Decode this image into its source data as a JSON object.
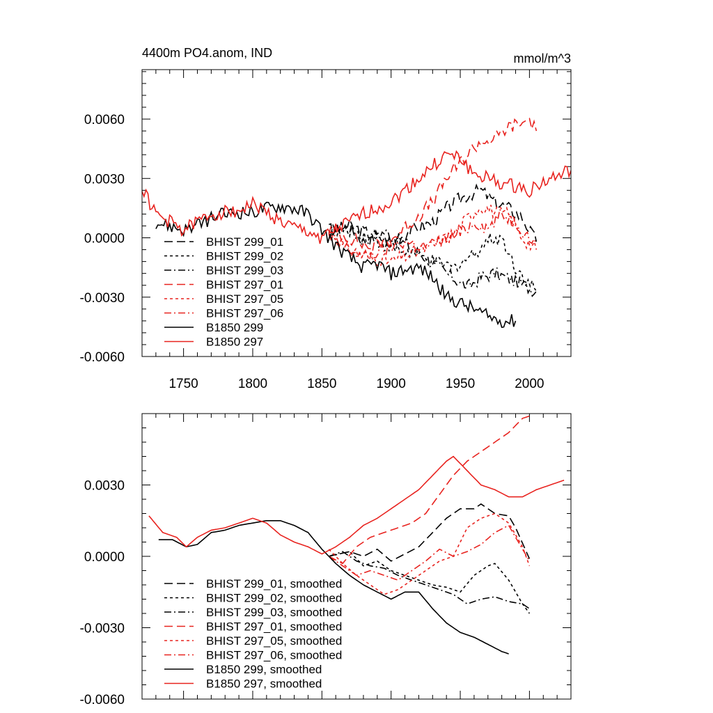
{
  "chart_data": [
    {
      "type": "line",
      "title": "4400m PO4.anom, IND",
      "units": "mmol/m^3",
      "xlim": [
        1720,
        2030
      ],
      "ylim": [
        -0.006,
        0.0085
      ],
      "xticks": [
        1750,
        1800,
        1850,
        1900,
        1950,
        2000
      ],
      "xtick_labels": [
        "1750",
        "1800",
        "1850",
        "1900",
        "1950",
        "2000"
      ],
      "yticks": [
        -0.006,
        -0.003,
        0.0,
        0.003,
        0.006
      ],
      "ytick_labels": [
        "-0.0060",
        "-0.0030",
        "0.0000",
        "0.0030",
        "0.0060"
      ],
      "legend_position": "bottom-left",
      "series": [
        {
          "name": "BHIST 299_01",
          "color": "#000000",
          "dash": "long",
          "smooth": false,
          "x": [
            1855,
            1870,
            1885,
            1900,
            1915,
            1930,
            1940,
            1950,
            1960,
            1965,
            1975,
            1985,
            1995,
            2005
          ],
          "y": [
            0.0003,
            0.0006,
            0.0002,
            -0.0002,
            0.0004,
            0.0008,
            0.0015,
            0.002,
            0.0023,
            0.0024,
            0.0018,
            0.0015,
            0.001,
            -0.0002
          ]
        },
        {
          "name": "BHIST 299_02",
          "color": "#000000",
          "dash": "short",
          "smooth": false,
          "x": [
            1855,
            1870,
            1885,
            1900,
            1915,
            1930,
            1945,
            1960,
            1970,
            1980,
            1990,
            2005
          ],
          "y": [
            0.0002,
            0.0004,
            0.0,
            -0.0005,
            -0.0008,
            -0.0012,
            -0.0015,
            -0.0008,
            -0.0001,
            0.0,
            -0.0015,
            -0.0027
          ]
        },
        {
          "name": "BHIST 299_03",
          "color": "#000000",
          "dash": "dashdot",
          "smooth": false,
          "x": [
            1855,
            1870,
            1880,
            1895,
            1910,
            1925,
            1940,
            1955,
            1965,
            1975,
            1990,
            2005
          ],
          "y": [
            0.0004,
            0.0005,
            -0.0002,
            0.0003,
            -0.0003,
            -0.001,
            -0.0018,
            -0.0025,
            -0.002,
            -0.0018,
            -0.0022,
            -0.0027
          ]
        },
        {
          "name": "BHIST 297_01",
          "color": "#e8231f",
          "dash": "long",
          "smooth": false,
          "x": [
            1855,
            1870,
            1885,
            1900,
            1915,
            1930,
            1940,
            1950,
            1960,
            1965,
            1975,
            1985,
            1995,
            2000,
            2005
          ],
          "y": [
            0.0004,
            0.0,
            -0.0005,
            -0.0001,
            0.0008,
            0.0018,
            0.003,
            0.0038,
            0.0046,
            0.0048,
            0.005,
            0.0056,
            0.0058,
            0.006,
            0.0054
          ]
        },
        {
          "name": "BHIST 297_05",
          "color": "#e8231f",
          "dash": "short",
          "smooth": false,
          "x": [
            1855,
            1870,
            1885,
            1900,
            1915,
            1930,
            1945,
            1955,
            1965,
            1975,
            1985,
            1995,
            2005
          ],
          "y": [
            0.0003,
            -0.0006,
            -0.001,
            -0.0012,
            -0.0008,
            -0.0004,
            0.0002,
            0.001,
            0.0016,
            0.0013,
            0.0012,
            0.0,
            -0.0006
          ]
        },
        {
          "name": "BHIST 297_06",
          "color": "#e8231f",
          "dash": "dashdot",
          "smooth": false,
          "x": [
            1855,
            1865,
            1880,
            1895,
            1910,
            1925,
            1940,
            1950,
            1960,
            1970,
            1980,
            1990,
            2000,
            2005
          ],
          "y": [
            0.0,
            -0.0004,
            -0.001,
            -0.0006,
            -0.0002,
            -0.0005,
            0.0,
            0.0002,
            0.0008,
            0.0005,
            0.0012,
            0.0008,
            0.0,
            -0.0003
          ]
        },
        {
          "name": "B1850 299",
          "color": "#000000",
          "dash": "solid",
          "smooth": false,
          "x": [
            1730,
            1740,
            1750,
            1760,
            1770,
            1780,
            1790,
            1800,
            1810,
            1820,
            1830,
            1840,
            1850,
            1860,
            1870,
            1880,
            1890,
            1900,
            1910,
            1920,
            1930,
            1940,
            1950,
            1960,
            1970,
            1980,
            1990
          ],
          "y": [
            0.0008,
            0.0006,
            0.0004,
            0.0006,
            0.001,
            0.0012,
            0.0013,
            0.0013,
            0.0015,
            0.0016,
            0.0015,
            0.0012,
            0.0004,
            -0.0004,
            -0.001,
            -0.0015,
            -0.0013,
            -0.0018,
            -0.0016,
            -0.0015,
            -0.002,
            -0.003,
            -0.0033,
            -0.0036,
            -0.004,
            -0.0042,
            -0.0042
          ]
        },
        {
          "name": "B1850 297",
          "color": "#e8231f",
          "dash": "solid",
          "smooth": false,
          "x": [
            1720,
            1730,
            1740,
            1750,
            1760,
            1770,
            1780,
            1790,
            1800,
            1810,
            1820,
            1830,
            1840,
            1850,
            1860,
            1870,
            1880,
            1890,
            1900,
            1910,
            1920,
            1930,
            1940,
            1950,
            1960,
            1970,
            1980,
            1990,
            2000,
            2010,
            2020,
            2030
          ],
          "y": [
            0.0025,
            0.0012,
            0.0008,
            0.0004,
            0.0008,
            0.0012,
            0.0013,
            0.0014,
            0.0017,
            0.0013,
            0.0008,
            0.0005,
            0.0003,
            0.0,
            0.0004,
            0.0008,
            0.0012,
            0.0015,
            0.0018,
            0.0024,
            0.003,
            0.0036,
            0.0042,
            0.004,
            0.0032,
            0.003,
            0.0027,
            0.0026,
            0.0024,
            0.0028,
            0.0031,
            0.0034
          ]
        }
      ]
    },
    {
      "type": "line",
      "xlim": [
        1720,
        2030
      ],
      "ylim": [
        -0.006,
        0.006
      ],
      "xticks": [
        1750,
        1800,
        1850,
        1900,
        1950,
        2000
      ],
      "yticks": [
        -0.006,
        -0.003,
        0.0,
        0.003
      ],
      "ytick_labels": [
        "-0.0060",
        "-0.0030",
        "0.0000",
        "0.0030"
      ],
      "legend_position": "bottom-left",
      "series": [
        {
          "name": "BHIST 299_01, smoothed",
          "color": "#000000",
          "dash": "long",
          "smooth": true,
          "x": [
            1855,
            1870,
            1880,
            1890,
            1900,
            1910,
            1920,
            1930,
            1940,
            1950,
            1960,
            1965,
            1975,
            1985,
            1990,
            2000
          ],
          "y": [
            0.0,
            0.0002,
            0.0,
            0.0003,
            -0.0002,
            0.0001,
            0.0004,
            0.001,
            0.0016,
            0.002,
            0.002,
            0.0022,
            0.0018,
            0.0017,
            0.0012,
            -0.0001
          ]
        },
        {
          "name": "BHIST 299_02, smoothed",
          "color": "#000000",
          "dash": "short",
          "smooth": true,
          "x": [
            1855,
            1870,
            1880,
            1890,
            1900,
            1910,
            1920,
            1930,
            1940,
            1950,
            1960,
            1970,
            1975,
            1985,
            1995,
            2000
          ],
          "y": [
            0.0,
            0.0002,
            -0.0004,
            -0.0002,
            -0.0006,
            -0.0008,
            -0.001,
            -0.0012,
            -0.0013,
            -0.0015,
            -0.0008,
            -0.0004,
            -0.0003,
            -0.001,
            -0.002,
            -0.0024
          ]
        },
        {
          "name": "BHIST 299_03, smoothed",
          "color": "#000000",
          "dash": "dashdot",
          "smooth": true,
          "x": [
            1855,
            1865,
            1875,
            1885,
            1895,
            1905,
            1915,
            1925,
            1935,
            1945,
            1955,
            1965,
            1975,
            1985,
            1995,
            2000
          ],
          "y": [
            0.0,
            0.0002,
            -0.0002,
            -0.0004,
            -0.0005,
            -0.0008,
            -0.001,
            -0.0012,
            -0.0014,
            -0.0016,
            -0.002,
            -0.0018,
            -0.0017,
            -0.0019,
            -0.002,
            -0.0022
          ]
        },
        {
          "name": "BHIST 297_01, smoothed",
          "color": "#e8231f",
          "dash": "long",
          "smooth": true,
          "x": [
            1855,
            1865,
            1875,
            1885,
            1895,
            1905,
            1915,
            1925,
            1935,
            1945,
            1955,
            1965,
            1975,
            1985,
            1995,
            2000
          ],
          "y": [
            0.0,
            -0.0003,
            0.0004,
            0.0008,
            0.001,
            0.0012,
            0.0014,
            0.0018,
            0.0026,
            0.0034,
            0.004,
            0.0044,
            0.0048,
            0.0052,
            0.0058,
            0.0059
          ]
        },
        {
          "name": "BHIST 297_05, smoothed",
          "color": "#e8231f",
          "dash": "short",
          "smooth": true,
          "x": [
            1855,
            1865,
            1875,
            1885,
            1895,
            1905,
            1915,
            1925,
            1935,
            1945,
            1955,
            1965,
            1975,
            1985,
            1995,
            2000
          ],
          "y": [
            0.0003,
            -0.0003,
            -0.0008,
            -0.0012,
            -0.0016,
            -0.0014,
            -0.001,
            -0.0006,
            -0.0002,
            0.0,
            0.0012,
            0.0016,
            0.0018,
            0.0014,
            0.0004,
            -0.0004
          ]
        },
        {
          "name": "BHIST 297_06, smoothed",
          "color": "#e8231f",
          "dash": "dashdot",
          "smooth": true,
          "x": [
            1855,
            1865,
            1875,
            1885,
            1895,
            1905,
            1915,
            1925,
            1935,
            1945,
            1955,
            1965,
            1975,
            1985,
            1995,
            2000
          ],
          "y": [
            0.0,
            -0.0004,
            -0.0008,
            -0.0006,
            -0.0008,
            -0.001,
            -0.0006,
            -0.0002,
            0.0003,
            0.0,
            0.0002,
            0.0005,
            0.001,
            0.0013,
            0.0003,
            -0.0002
          ]
        },
        {
          "name": "B1850 299, smoothed",
          "color": "#000000",
          "dash": "solid",
          "smooth": true,
          "x": [
            1732,
            1742,
            1752,
            1760,
            1770,
            1780,
            1790,
            1800,
            1810,
            1820,
            1830,
            1840,
            1850,
            1860,
            1870,
            1880,
            1890,
            1900,
            1910,
            1920,
            1930,
            1940,
            1950,
            1960,
            1970,
            1980,
            1985
          ],
          "y": [
            0.0007,
            0.0007,
            0.0004,
            0.0005,
            0.001,
            0.0011,
            0.0013,
            0.0014,
            0.0015,
            0.0015,
            0.0013,
            0.001,
            0.0003,
            -0.0003,
            -0.0008,
            -0.0012,
            -0.0015,
            -0.0018,
            -0.0015,
            -0.0015,
            -0.0022,
            -0.0028,
            -0.0032,
            -0.0034,
            -0.0037,
            -0.004,
            -0.0041
          ]
        },
        {
          "name": "B1850 297, smoothed",
          "color": "#e8231f",
          "dash": "solid",
          "smooth": true,
          "x": [
            1725,
            1735,
            1745,
            1752,
            1760,
            1770,
            1780,
            1790,
            1800,
            1810,
            1820,
            1830,
            1840,
            1850,
            1860,
            1870,
            1880,
            1890,
            1900,
            1910,
            1920,
            1930,
            1940,
            1945,
            1955,
            1965,
            1975,
            1985,
            1995,
            2005,
            2015,
            2025
          ],
          "y": [
            0.0017,
            0.001,
            0.0008,
            0.0004,
            0.0008,
            0.0011,
            0.0012,
            0.0014,
            0.0016,
            0.0014,
            0.0009,
            0.0006,
            0.0004,
            0.0001,
            0.0004,
            0.0008,
            0.0013,
            0.0016,
            0.002,
            0.0024,
            0.0028,
            0.0034,
            0.004,
            0.0042,
            0.0036,
            0.003,
            0.0028,
            0.0025,
            0.0025,
            0.0028,
            0.003,
            0.0032
          ]
        }
      ]
    }
  ]
}
